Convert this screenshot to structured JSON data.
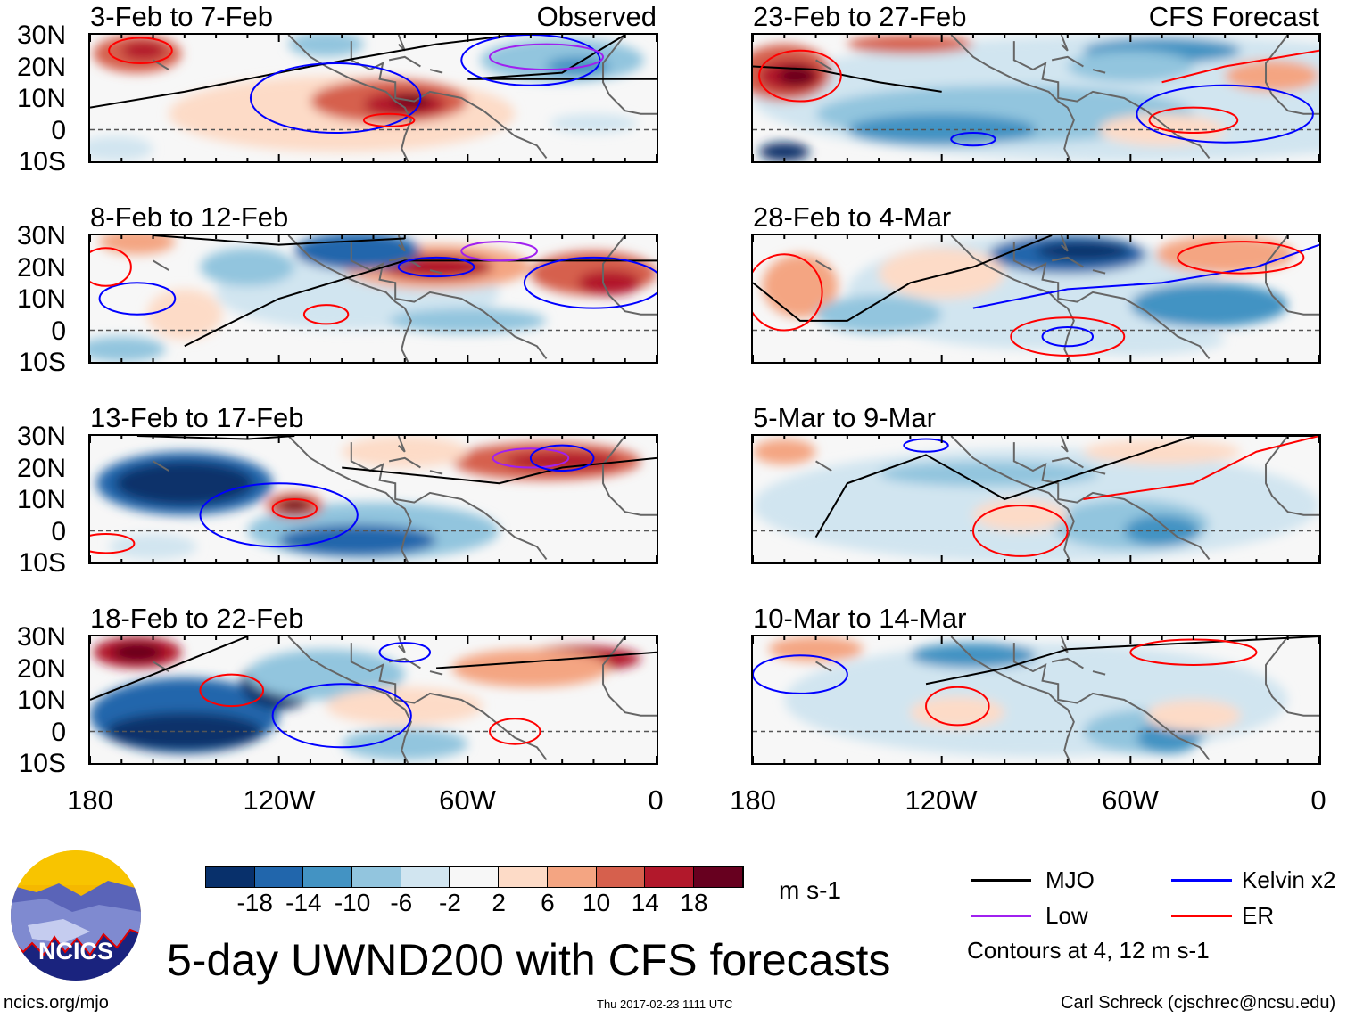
{
  "panels": [
    {
      "title": "3-Feb to 7-Feb",
      "label": "Observed"
    },
    {
      "title": "23-Feb to 27-Feb",
      "label": "CFS Forecast"
    },
    {
      "title": "8-Feb to 12-Feb",
      "label": ""
    },
    {
      "title": "28-Feb to 4-Mar",
      "label": ""
    },
    {
      "title": "13-Feb to 17-Feb",
      "label": ""
    },
    {
      "title": "5-Mar to 9-Mar",
      "label": ""
    },
    {
      "title": "18-Feb to 22-Feb",
      "label": ""
    },
    {
      "title": "10-Mar to 14-Mar",
      "label": ""
    }
  ],
  "lat_ticks": [
    "30N",
    "20N",
    "10N",
    "0",
    "10S"
  ],
  "lon_ticks": [
    "180",
    "120W",
    "60W",
    "0"
  ],
  "colorbar": {
    "colors": [
      "#08306b",
      "#2166ac",
      "#4393c3",
      "#92c5de",
      "#d1e5f0",
      "#f7f7f7",
      "#fddbc7",
      "#f4a582",
      "#d6604d",
      "#b2182b",
      "#67001f"
    ],
    "labels": [
      "-18",
      "-14",
      "-10",
      "-6",
      "-2",
      "2",
      "6",
      "10",
      "14",
      "18"
    ],
    "units": "m s-1"
  },
  "legend": {
    "items": [
      {
        "label": "MJO",
        "color": "#000000"
      },
      {
        "label": "Kelvin x2",
        "color": "#0000ff"
      },
      {
        "label": "Low",
        "color": "#a020f0"
      },
      {
        "label": "ER",
        "color": "#ff0000"
      }
    ],
    "note": "Contours at 4, 12 m s-1"
  },
  "title": "5-day UWND200 with CFS forecasts",
  "logo_text": "NCICS",
  "footer": {
    "left": "ncics.org/mjo",
    "center": "Thu 2017-02-23 1111 UTC",
    "right": "Carl Schreck (cjschrec@ncsu.edu)"
  }
}
